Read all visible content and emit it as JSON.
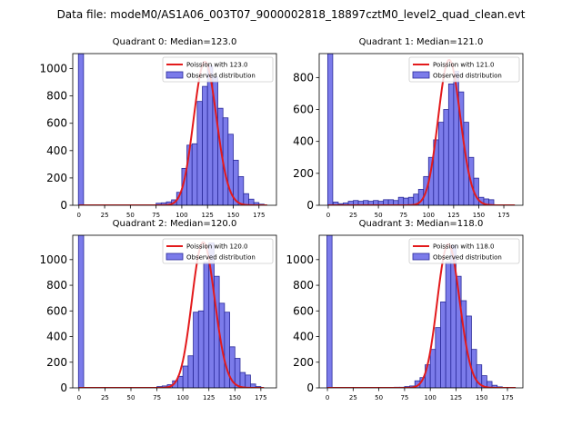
{
  "suptitle": "Data file: modeM0/AS1A06_003T07_9000002818_18897cztM0_level2_quad_clean.evt",
  "colors": {
    "bar_fill": "#7b7bea",
    "bar_edge": "#2a2a9a",
    "poisson_line": "#e31a1c"
  },
  "chart_data": [
    {
      "type": "bar",
      "title": "Quadrant 0: Median=123.0",
      "legend": [
        "Poission with 123.0",
        "Observed distribution"
      ],
      "legend_position": "top-right",
      "xlim": [
        -6,
        192
      ],
      "ylim": [
        0,
        1110
      ],
      "xticks": [
        0,
        25,
        50,
        75,
        100,
        125,
        150,
        175
      ],
      "yticks": [
        0,
        200,
        400,
        600,
        800,
        1000
      ],
      "zero_bin": 1110,
      "bins": [
        [
          75,
          15
        ],
        [
          80,
          18
        ],
        [
          85,
          25
        ],
        [
          90,
          40
        ],
        [
          95,
          95
        ],
        [
          100,
          270
        ],
        [
          105,
          440
        ],
        [
          110,
          450
        ],
        [
          115,
          760
        ],
        [
          120,
          870
        ],
        [
          125,
          1020
        ],
        [
          130,
          940
        ],
        [
          135,
          710
        ],
        [
          140,
          640
        ],
        [
          145,
          520
        ],
        [
          150,
          330
        ],
        [
          155,
          210
        ],
        [
          160,
          85
        ],
        [
          165,
          45
        ],
        [
          170,
          20
        ],
        [
          175,
          8
        ]
      ],
      "poisson_mean": 123.0,
      "poisson_peak": 1050,
      "line_x": [
        0,
        183
      ]
    },
    {
      "type": "bar",
      "title": "Quadrant 1: Median=121.0",
      "legend": [
        "Poission with 121.0",
        "Observed distribution"
      ],
      "legend_position": "top-right",
      "xlim": [
        -9,
        194
      ],
      "ylim": [
        0,
        950
      ],
      "xticks": [
        0,
        25,
        50,
        75,
        100,
        125,
        150,
        175
      ],
      "yticks": [
        0,
        200,
        400,
        600,
        800
      ],
      "zero_bin": 950,
      "bins": [
        [
          5,
          20
        ],
        [
          10,
          10
        ],
        [
          15,
          15
        ],
        [
          20,
          25
        ],
        [
          25,
          30
        ],
        [
          30,
          25
        ],
        [
          35,
          30
        ],
        [
          40,
          25
        ],
        [
          45,
          30
        ],
        [
          50,
          25
        ],
        [
          55,
          35
        ],
        [
          60,
          35
        ],
        [
          65,
          30
        ],
        [
          70,
          50
        ],
        [
          75,
          45
        ],
        [
          80,
          50
        ],
        [
          85,
          70
        ],
        [
          90,
          100
        ],
        [
          95,
          180
        ],
        [
          100,
          300
        ],
        [
          105,
          410
        ],
        [
          110,
          520
        ],
        [
          115,
          600
        ],
        [
          120,
          760
        ],
        [
          125,
          840
        ],
        [
          130,
          710
        ],
        [
          135,
          520
        ],
        [
          140,
          300
        ],
        [
          145,
          170
        ],
        [
          150,
          50
        ],
        [
          155,
          40
        ],
        [
          160,
          35
        ]
      ],
      "poisson_mean": 121.0,
      "poisson_peak": 910,
      "line_x": [
        0,
        186
      ]
    },
    {
      "type": "bar",
      "title": "Quadrant 2: Median=120.0",
      "legend": [
        "Poission with 120.0",
        "Observed distribution"
      ],
      "legend_position": "top-right",
      "xlim": [
        -6,
        190
      ],
      "ylim": [
        0,
        1190
      ],
      "xticks": [
        0,
        25,
        50,
        75,
        100,
        125,
        150,
        175
      ],
      "yticks": [
        0,
        200,
        400,
        600,
        800,
        1000
      ],
      "zero_bin": 1190,
      "bins": [
        [
          75,
          10
        ],
        [
          80,
          15
        ],
        [
          85,
          25
        ],
        [
          90,
          55
        ],
        [
          95,
          90
        ],
        [
          100,
          170
        ],
        [
          105,
          250
        ],
        [
          110,
          590
        ],
        [
          115,
          600
        ],
        [
          120,
          980
        ],
        [
          125,
          1130
        ],
        [
          130,
          870
        ],
        [
          135,
          660
        ],
        [
          140,
          590
        ],
        [
          145,
          320
        ],
        [
          150,
          230
        ],
        [
          155,
          120
        ],
        [
          160,
          100
        ],
        [
          165,
          30
        ],
        [
          170,
          10
        ]
      ],
      "poisson_mean": 120.0,
      "poisson_peak": 1135,
      "line_x": [
        0,
        178
      ]
    },
    {
      "type": "bar",
      "title": "Quadrant 3: Median=118.0",
      "legend": [
        "Poission with 118.0",
        "Observed distribution"
      ],
      "legend_position": "top-right",
      "xlim": [
        -8,
        190
      ],
      "ylim": [
        0,
        1190
      ],
      "xticks": [
        0,
        25,
        50,
        75,
        100,
        125,
        150,
        175
      ],
      "yticks": [
        0,
        200,
        400,
        600,
        800,
        1000
      ],
      "zero_bin": 1190,
      "bins": [
        [
          65,
          5
        ],
        [
          70,
          5
        ],
        [
          75,
          10
        ],
        [
          80,
          15
        ],
        [
          85,
          55
        ],
        [
          90,
          80
        ],
        [
          95,
          180
        ],
        [
          100,
          300
        ],
        [
          105,
          470
        ],
        [
          110,
          670
        ],
        [
          115,
          980
        ],
        [
          120,
          1110
        ],
        [
          125,
          870
        ],
        [
          130,
          680
        ],
        [
          135,
          560
        ],
        [
          140,
          300
        ],
        [
          145,
          180
        ],
        [
          150,
          95
        ],
        [
          155,
          50
        ],
        [
          160,
          20
        ],
        [
          165,
          8
        ]
      ],
      "poisson_mean": 118.0,
      "poisson_peak": 1120,
      "line_x": [
        0,
        183
      ]
    }
  ]
}
